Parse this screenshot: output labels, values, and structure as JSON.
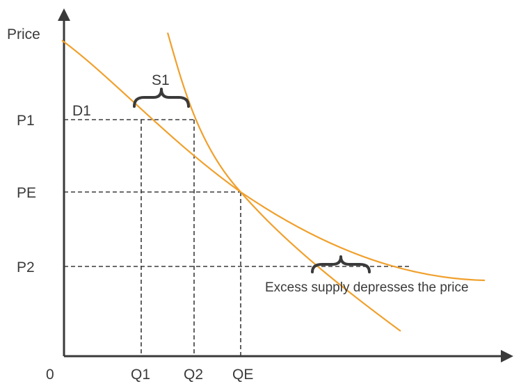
{
  "axes": {
    "y_label": "Price",
    "origin_label": "0",
    "price_ticks": [
      "P1",
      "PE",
      "P2"
    ],
    "quantity_ticks": [
      "Q1",
      "Q2",
      "QE"
    ]
  },
  "curves": {
    "demand_label": "D1",
    "supply_label": "S1",
    "color": "#f0a02c"
  },
  "annotations": {
    "excess_supply": "Excess supply depresses the price"
  },
  "colors": {
    "axis": "#3a3a3a",
    "curve": "#f0a02c",
    "text": "#3a3a3a"
  }
}
